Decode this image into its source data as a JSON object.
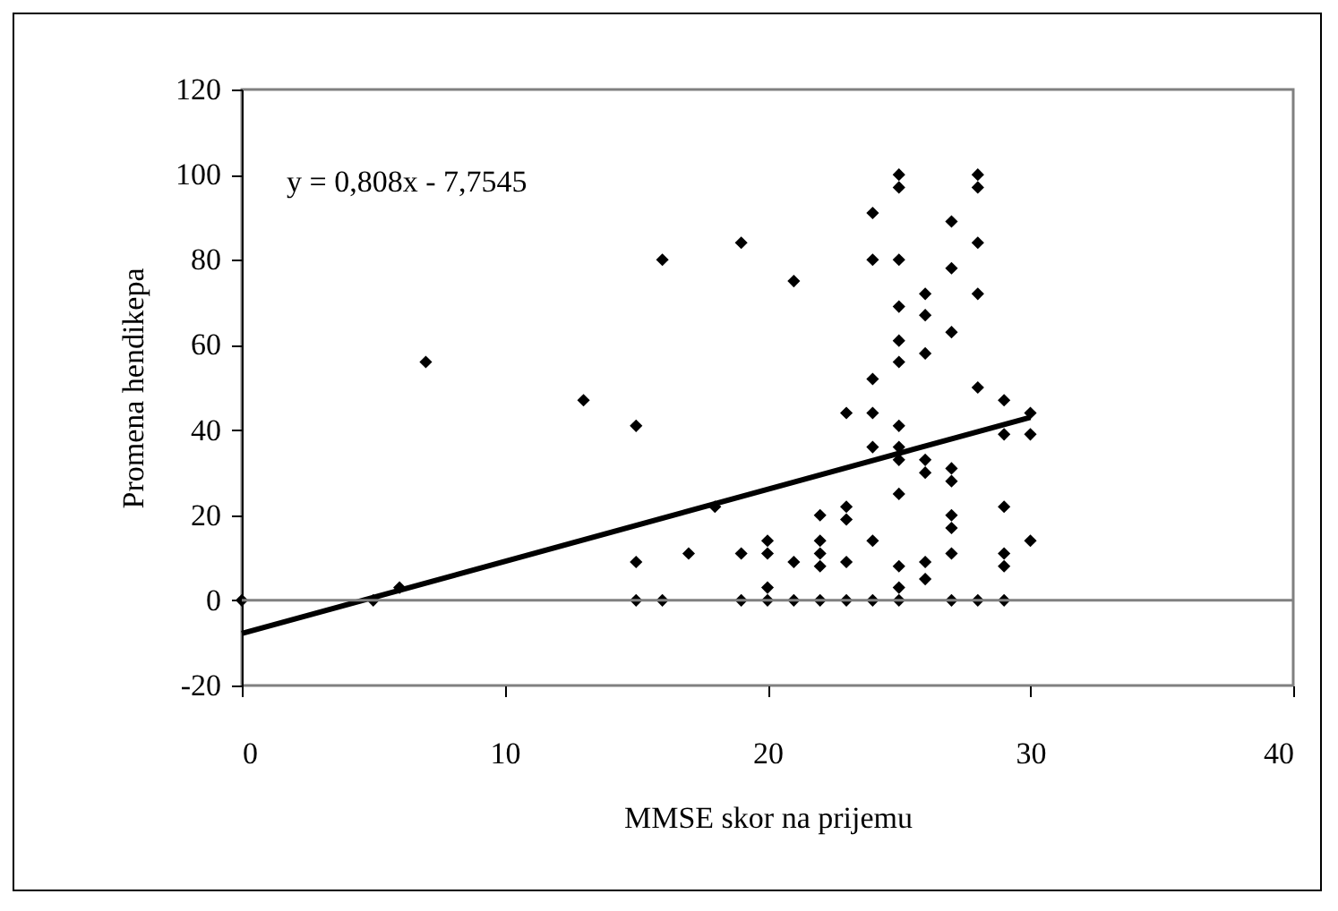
{
  "chart_data": {
    "type": "scatter",
    "xlabel": "MMSE skor na prijemu",
    "ylabel": "Promena hendikepa",
    "annotations": [
      "y = 0,808x - 7,7545"
    ],
    "xlim": [
      0,
      40
    ],
    "xticks": [
      0,
      10,
      20,
      30,
      40
    ],
    "ylim": [
      -20,
      120
    ],
    "yticks": [
      -20,
      0,
      20,
      40,
      60,
      80,
      100,
      120
    ],
    "marker": "diamond",
    "ref_lines": [
      {
        "axis": "y",
        "value": 0
      }
    ],
    "series": [
      {
        "color": "#000000",
        "x": [
          0,
          5,
          6,
          7,
          13,
          15,
          15,
          15,
          16,
          16,
          17,
          18,
          19,
          19,
          19,
          20,
          20,
          20,
          20,
          21,
          21,
          21,
          22,
          22,
          22,
          22,
          22,
          23,
          23,
          23,
          23,
          23,
          24,
          24,
          24,
          24,
          24,
          24,
          24,
          25,
          25,
          25,
          25,
          25,
          25,
          25,
          25,
          25,
          25,
          25,
          25,
          25,
          26,
          26,
          26,
          26,
          26,
          26,
          26,
          27,
          27,
          27,
          27,
          27,
          27,
          27,
          27,
          27,
          28,
          28,
          28,
          28,
          28,
          28,
          29,
          29,
          29,
          29,
          29,
          29,
          30,
          30,
          30
        ],
        "values": [
          0,
          0,
          3,
          56,
          47,
          41,
          9,
          0,
          80,
          0,
          11,
          22,
          84,
          11,
          0,
          14,
          11,
          3,
          0,
          75,
          9,
          0,
          20,
          14,
          11,
          8,
          0,
          44,
          22,
          19,
          9,
          0,
          91,
          80,
          52,
          44,
          36,
          14,
          0,
          100,
          97,
          80,
          69,
          61,
          56,
          41,
          36,
          33,
          25,
          8,
          3,
          0,
          72,
          67,
          58,
          33,
          30,
          9,
          5,
          89,
          78,
          63,
          31,
          28,
          20,
          17,
          11,
          0,
          100,
          97,
          84,
          72,
          50,
          0,
          47,
          39,
          22,
          11,
          8,
          0,
          44,
          39,
          14
        ]
      },
      {
        "type": "line",
        "color": "#000000",
        "line_style": "solid",
        "marker": "none",
        "x": [
          0,
          30
        ],
        "values": [
          -7.8,
          43
        ]
      }
    ]
  }
}
